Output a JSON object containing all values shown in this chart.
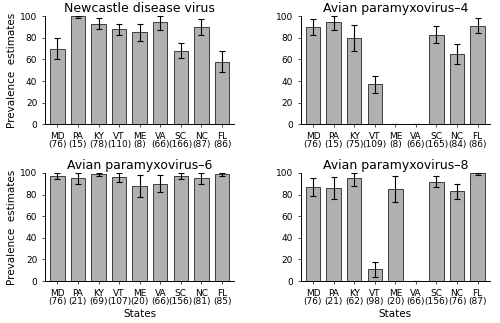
{
  "panels": [
    {
      "title": "Newcastle disease virus",
      "states": [
        "MD\n(76)",
        "PA\n(15)",
        "KY\n(78)",
        "VT\n(110)",
        "ME\n(8)",
        "VA\n(66)",
        "SC\n(166)",
        "NC\n(87)",
        "FL\n(86)"
      ],
      "values": [
        70,
        100,
        93,
        88,
        85,
        95,
        68,
        90,
        58
      ],
      "errors": [
        10,
        2,
        5,
        5,
        8,
        8,
        7,
        7,
        10
      ],
      "ylim": [
        0,
        100
      ]
    },
    {
      "title": "Avian paramyxovirus–4",
      "states": [
        "MD\n(76)",
        "PA\n(15)",
        "KY\n(75)",
        "VT\n(109)",
        "ME\n(8)",
        "VA\n(66)",
        "SC\n(165)",
        "NC\n(84)",
        "FL\n(86)"
      ],
      "values": [
        90,
        95,
        80,
        37,
        0,
        0,
        83,
        65,
        91
      ],
      "errors": [
        7,
        8,
        12,
        8,
        0,
        0,
        8,
        9,
        7
      ],
      "ylim": [
        0,
        100
      ]
    },
    {
      "title": "Avian paramyxovirus–6",
      "states": [
        "MD\n(76)",
        "PA\n(21)",
        "KY\n(69)",
        "VT\n(107)",
        "ME\n(20)",
        "VA\n(66)",
        "SC\n(156)",
        "NC\n(81)",
        "FL\n(85)"
      ],
      "values": [
        97,
        95,
        99,
        96,
        88,
        90,
        97,
        95,
        99
      ],
      "errors": [
        3,
        5,
        2,
        4,
        10,
        8,
        3,
        5,
        2
      ],
      "ylim": [
        0,
        100
      ]
    },
    {
      "title": "Avian paramyxovirus–8",
      "states": [
        "MD\n(76)",
        "PA\n(21)",
        "KY\n(62)",
        "VT\n(98)",
        "ME\n(20)",
        "VA\n(66)",
        "SC\n(156)",
        "NC\n(76)",
        "FL\n(87)"
      ],
      "values": [
        87,
        86,
        95,
        11,
        85,
        0,
        92,
        83,
        100
      ],
      "errors": [
        8,
        10,
        7,
        7,
        12,
        0,
        5,
        7,
        2
      ],
      "ylim": [
        0,
        100
      ]
    }
  ],
  "bar_color": "#b0b0b0",
  "bar_edgecolor": "#000000",
  "error_color": "#000000",
  "ylabel": "Prevalence  estimates",
  "xlabel_bottom": "States",
  "yticks": [
    0,
    20,
    40,
    60,
    80,
    100
  ],
  "title_fontsize": 9,
  "tick_fontsize": 6.5,
  "label_fontsize": 7.5,
  "background_color": "#ffffff"
}
